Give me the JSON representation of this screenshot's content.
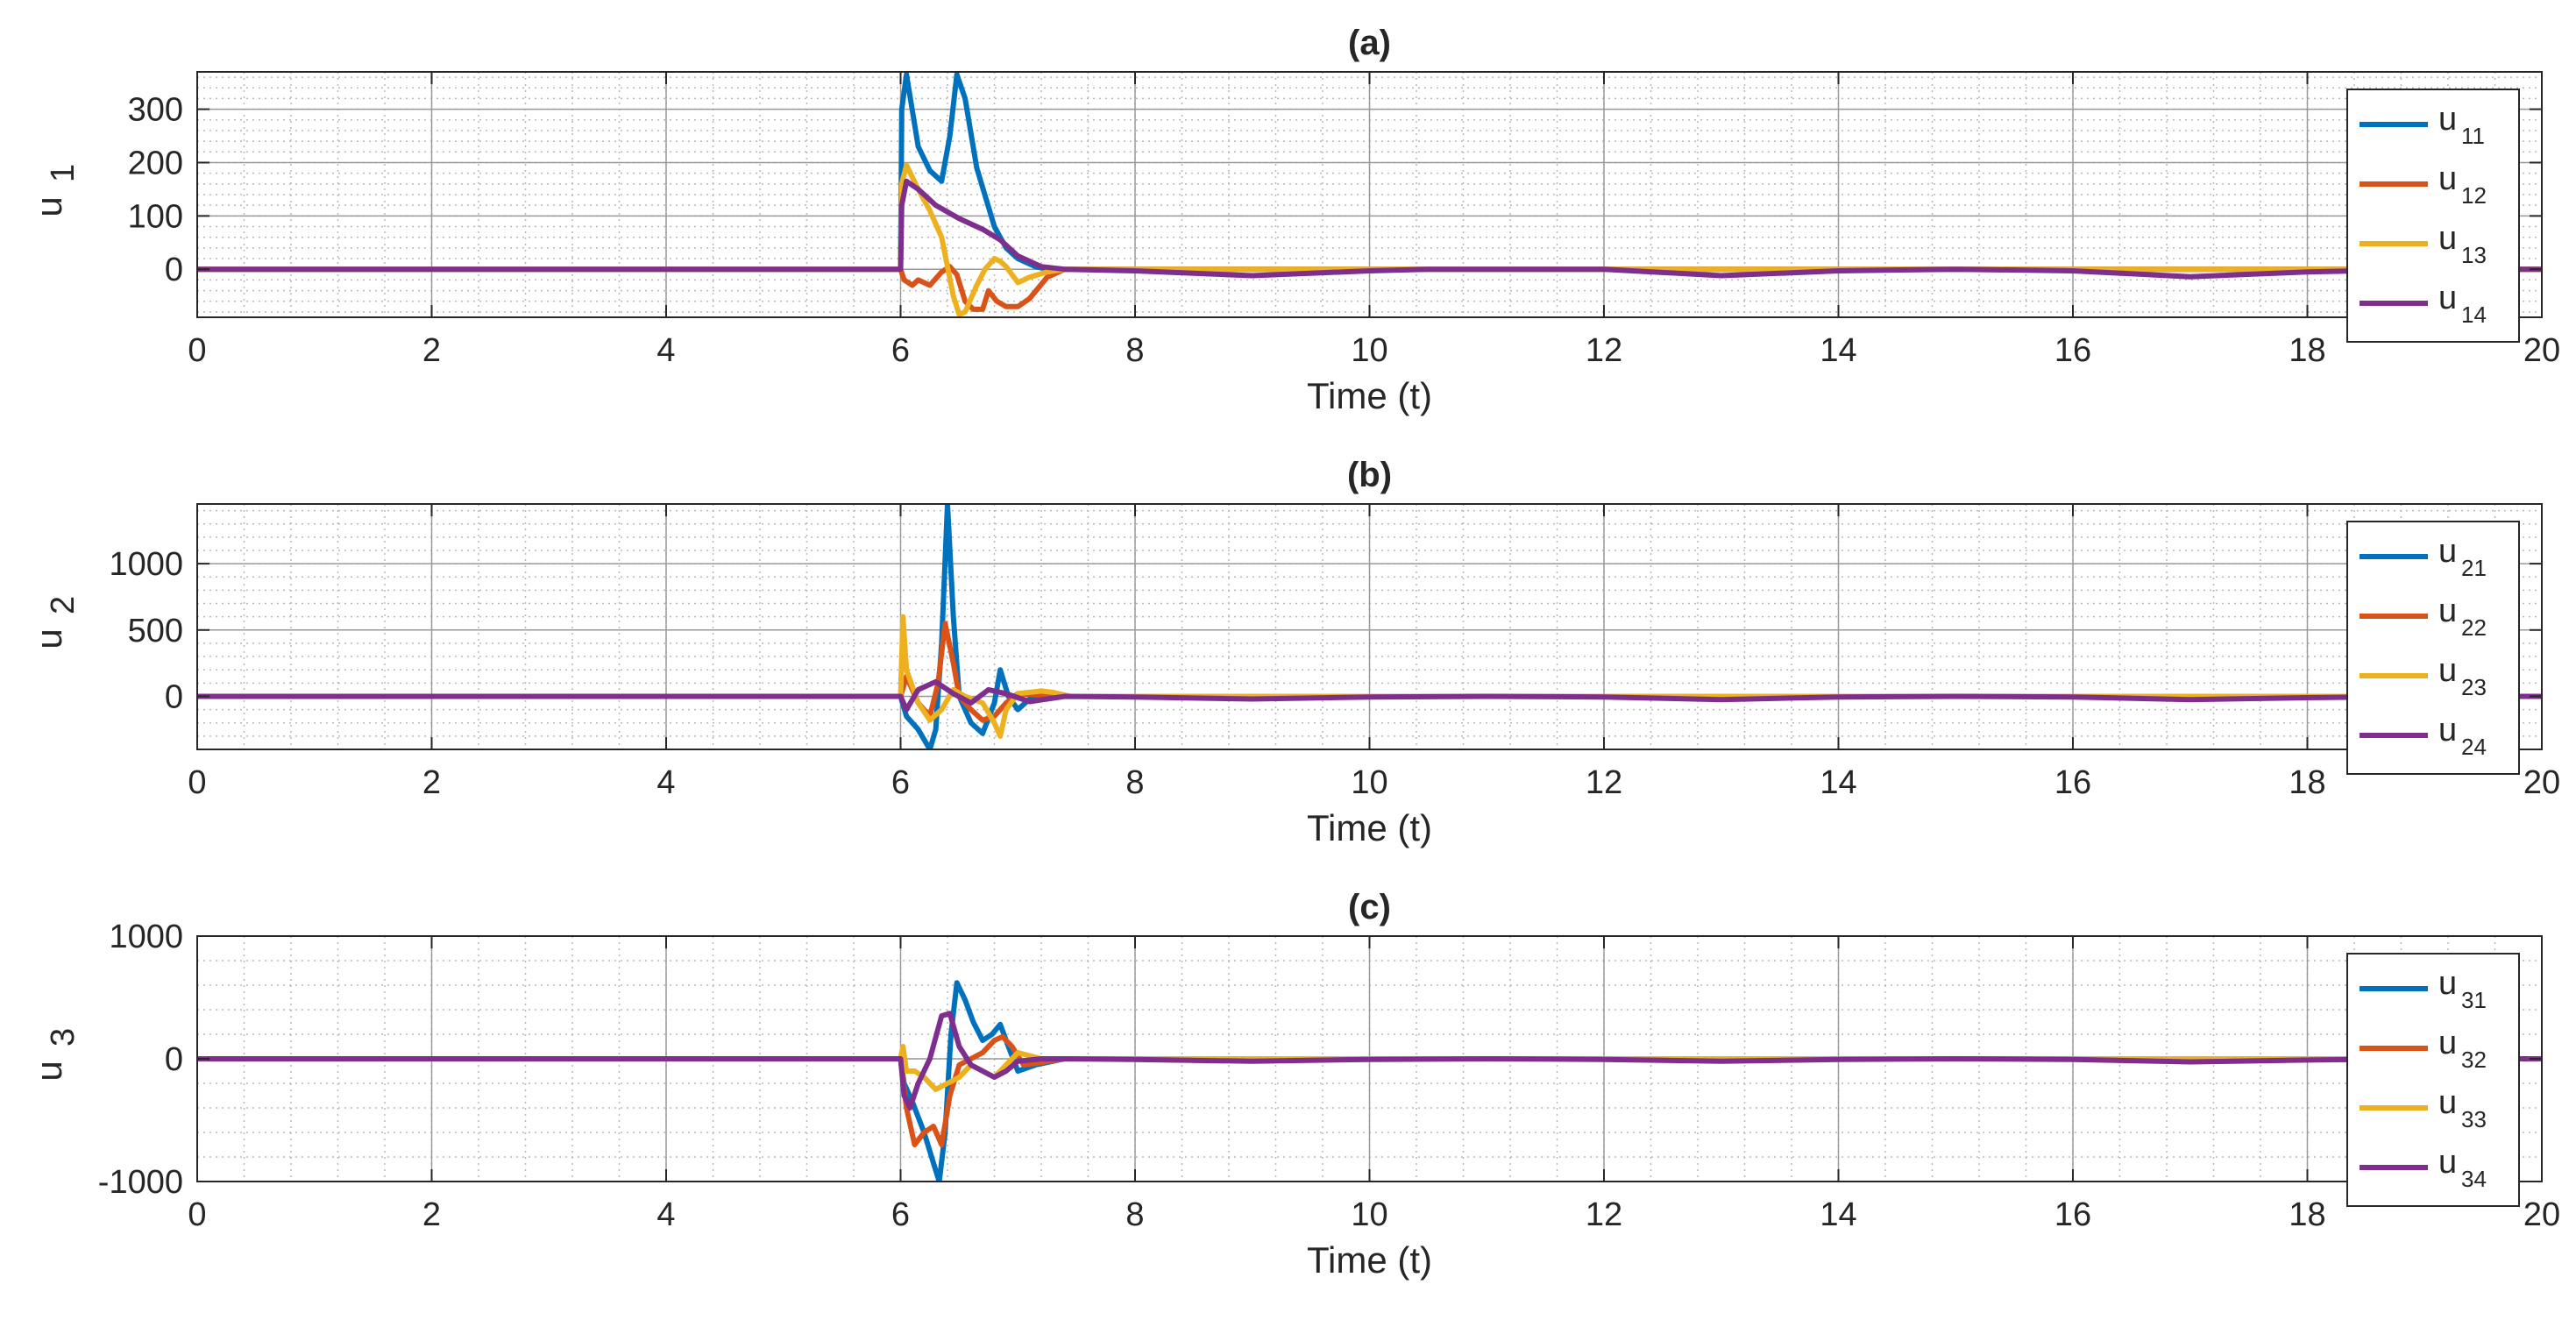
{
  "chart_data": [
    {
      "type": "line",
      "title": "(a)",
      "xlabel": "Time (t)",
      "ylabel_base": "u",
      "ylabel_sub": "1",
      "xlim": [
        0,
        20
      ],
      "ylim": [
        -90,
        370
      ],
      "xticks": [
        0,
        2,
        4,
        6,
        8,
        10,
        12,
        14,
        16,
        18,
        20
      ],
      "yticks": [
        0,
        100,
        200,
        300
      ],
      "grid": true,
      "minor_grid": true,
      "legend_position": "right",
      "series": [
        {
          "name": "u11",
          "label_base": "u",
          "label_sub": "11",
          "color": "#0072BD",
          "x": [
            0,
            6.0,
            6.01,
            6.05,
            6.15,
            6.25,
            6.35,
            6.42,
            6.48,
            6.55,
            6.65,
            6.8,
            6.9,
            7.0,
            7.15,
            7.3,
            7.4,
            20
          ],
          "y": [
            0,
            0,
            300,
            365,
            230,
            185,
            165,
            250,
            365,
            320,
            190,
            80,
            40,
            20,
            5,
            -2,
            0,
            0
          ]
        },
        {
          "name": "u12",
          "label_base": "u",
          "label_sub": "12",
          "color": "#D95319",
          "x": [
            0,
            6.0,
            6.03,
            6.1,
            6.15,
            6.25,
            6.35,
            6.42,
            6.48,
            6.55,
            6.62,
            6.7,
            6.75,
            6.82,
            6.9,
            7.0,
            7.1,
            7.25,
            7.4,
            20
          ],
          "y": [
            0,
            0,
            -20,
            -30,
            -20,
            -30,
            -5,
            5,
            -10,
            -60,
            -75,
            -75,
            -40,
            -60,
            -70,
            -70,
            -55,
            -15,
            0,
            0
          ]
        },
        {
          "name": "u13",
          "label_base": "u",
          "label_sub": "13",
          "color": "#EDB120",
          "x": [
            0,
            6.0,
            6.01,
            6.05,
            6.15,
            6.25,
            6.35,
            6.45,
            6.5,
            6.55,
            6.65,
            6.72,
            6.8,
            6.85,
            6.9,
            7.0,
            7.1,
            7.25,
            7.4,
            20
          ],
          "y": [
            0,
            0,
            160,
            195,
            150,
            110,
            60,
            -50,
            -85,
            -80,
            -30,
            0,
            20,
            15,
            5,
            -25,
            -15,
            -5,
            0,
            0
          ]
        },
        {
          "name": "u14",
          "label_base": "u",
          "label_sub": "14",
          "color": "#7E2F8E",
          "x": [
            0,
            6.0,
            6.01,
            6.05,
            6.15,
            6.3,
            6.5,
            6.7,
            6.85,
            7.0,
            7.2,
            7.4,
            8.0,
            9.0,
            10.0,
            10.5,
            11.0,
            12.0,
            13.0,
            14.0,
            15.0,
            16.0,
            17.0,
            18.0,
            19.0,
            20.0
          ],
          "y": [
            0,
            0,
            120,
            165,
            150,
            120,
            95,
            75,
            55,
            25,
            5,
            0,
            -3,
            -12,
            -3,
            0,
            0,
            0,
            -12,
            -3,
            0,
            -3,
            -14,
            -5,
            0,
            0
          ]
        }
      ]
    },
    {
      "type": "line",
      "title": "(b)",
      "xlabel": "Time (t)",
      "ylabel_base": "u",
      "ylabel_sub": "2",
      "xlim": [
        0,
        20
      ],
      "ylim": [
        -400,
        1450
      ],
      "xticks": [
        0,
        2,
        4,
        6,
        8,
        10,
        12,
        14,
        16,
        18,
        20
      ],
      "yticks": [
        0,
        500,
        1000
      ],
      "grid": true,
      "minor_grid": true,
      "legend_position": "right",
      "series": [
        {
          "name": "u21",
          "label_base": "u",
          "label_sub": "21",
          "color": "#0072BD",
          "x": [
            0,
            6.0,
            6.05,
            6.15,
            6.25,
            6.3,
            6.35,
            6.4,
            6.45,
            6.5,
            6.6,
            6.7,
            6.8,
            6.85,
            6.92,
            7.0,
            7.1,
            7.2,
            7.4,
            20
          ],
          "y": [
            0,
            0,
            -150,
            -250,
            -400,
            -250,
            400,
            1450,
            600,
            0,
            -200,
            -280,
            -50,
            200,
            0,
            -100,
            -20,
            10,
            0,
            0
          ]
        },
        {
          "name": "u22",
          "label_base": "u",
          "label_sub": "22",
          "color": "#D95319",
          "x": [
            0,
            6.0,
            6.05,
            6.15,
            6.25,
            6.32,
            6.38,
            6.45,
            6.5,
            6.6,
            6.7,
            6.8,
            6.9,
            7.0,
            7.2,
            7.4,
            20
          ],
          "y": [
            0,
            0,
            150,
            -50,
            -150,
            100,
            550,
            250,
            0,
            -100,
            -180,
            -150,
            -50,
            20,
            10,
            0,
            0
          ]
        },
        {
          "name": "u23",
          "label_base": "u",
          "label_sub": "23",
          "color": "#EDB120",
          "x": [
            0,
            6.0,
            6.02,
            6.05,
            6.15,
            6.25,
            6.35,
            6.45,
            6.55,
            6.7,
            6.8,
            6.85,
            6.9,
            7.0,
            7.1,
            7.2,
            7.3,
            7.45,
            20
          ],
          "y": [
            0,
            0,
            600,
            200,
            -50,
            -180,
            -100,
            50,
            0,
            -50,
            -200,
            -300,
            -100,
            20,
            30,
            40,
            30,
            0,
            0
          ]
        },
        {
          "name": "u24",
          "label_base": "u",
          "label_sub": "24",
          "color": "#7E2F8E",
          "x": [
            0,
            6.0,
            6.05,
            6.15,
            6.3,
            6.45,
            6.6,
            6.75,
            6.9,
            7.1,
            7.4,
            8.0,
            9.0,
            10.0,
            11.0,
            12.0,
            13.0,
            14.0,
            15.0,
            16.0,
            17.0,
            18.0,
            19.0,
            20.0
          ],
          "y": [
            0,
            0,
            -100,
            50,
            110,
            20,
            -50,
            50,
            20,
            -40,
            0,
            -5,
            -20,
            -5,
            0,
            -5,
            -25,
            -5,
            0,
            -5,
            -25,
            -10,
            0,
            0
          ]
        }
      ]
    },
    {
      "type": "line",
      "title": "(c)",
      "xlabel": "Time (t)",
      "ylabel_base": "u",
      "ylabel_sub": "3",
      "xlim": [
        0,
        20
      ],
      "ylim": [
        -1000,
        1000
      ],
      "xticks": [
        0,
        2,
        4,
        6,
        8,
        10,
        12,
        14,
        16,
        18,
        20
      ],
      "yticks": [
        -1000,
        0,
        1000
      ],
      "grid": true,
      "minor_grid": true,
      "legend_position": "right",
      "series": [
        {
          "name": "u31",
          "label_base": "u",
          "label_sub": "31",
          "color": "#0072BD",
          "x": [
            0,
            6.0,
            6.03,
            6.1,
            6.2,
            6.28,
            6.33,
            6.38,
            6.43,
            6.48,
            6.55,
            6.62,
            6.7,
            6.78,
            6.85,
            6.92,
            7.0,
            7.15,
            7.4,
            20
          ],
          "y": [
            0,
            0,
            -200,
            -350,
            -600,
            -850,
            -1000,
            -600,
            200,
            620,
            480,
            300,
            150,
            200,
            280,
            100,
            -100,
            -50,
            0,
            0
          ]
        },
        {
          "name": "u32",
          "label_base": "u",
          "label_sub": "32",
          "color": "#D95319",
          "x": [
            0,
            6.0,
            6.05,
            6.12,
            6.2,
            6.28,
            6.35,
            6.42,
            6.5,
            6.6,
            6.7,
            6.8,
            6.87,
            6.95,
            7.05,
            7.2,
            7.4,
            20
          ],
          "y": [
            0,
            0,
            -400,
            -700,
            -600,
            -550,
            -700,
            -300,
            -50,
            0,
            50,
            150,
            180,
            100,
            -50,
            -30,
            0,
            0
          ]
        },
        {
          "name": "u33",
          "label_base": "u",
          "label_sub": "33",
          "color": "#EDB120",
          "x": [
            0,
            6.0,
            6.02,
            6.05,
            6.12,
            6.2,
            6.3,
            6.4,
            6.5,
            6.6,
            6.7,
            6.8,
            6.9,
            7.0,
            7.2,
            7.4,
            20
          ],
          "y": [
            0,
            0,
            100,
            -100,
            -100,
            -150,
            -250,
            -200,
            -150,
            -50,
            -100,
            -150,
            -50,
            50,
            0,
            0,
            0
          ]
        },
        {
          "name": "u34",
          "label_base": "u",
          "label_sub": "34",
          "color": "#7E2F8E",
          "x": [
            0,
            6.0,
            6.03,
            6.08,
            6.15,
            6.25,
            6.35,
            6.42,
            6.5,
            6.6,
            6.7,
            6.8,
            6.9,
            7.0,
            7.2,
            7.4,
            8.0,
            9.0,
            10.0,
            11.0,
            12.0,
            13.0,
            14.0,
            15.0,
            16.0,
            17.0,
            18.0,
            19.0,
            20.0
          ],
          "y": [
            0,
            0,
            -300,
            -400,
            -200,
            0,
            350,
            370,
            100,
            -50,
            -100,
            -150,
            -100,
            -20,
            0,
            0,
            -5,
            -20,
            -5,
            0,
            -5,
            -20,
            -5,
            0,
            -5,
            -25,
            -10,
            0,
            0
          ]
        }
      ]
    }
  ]
}
